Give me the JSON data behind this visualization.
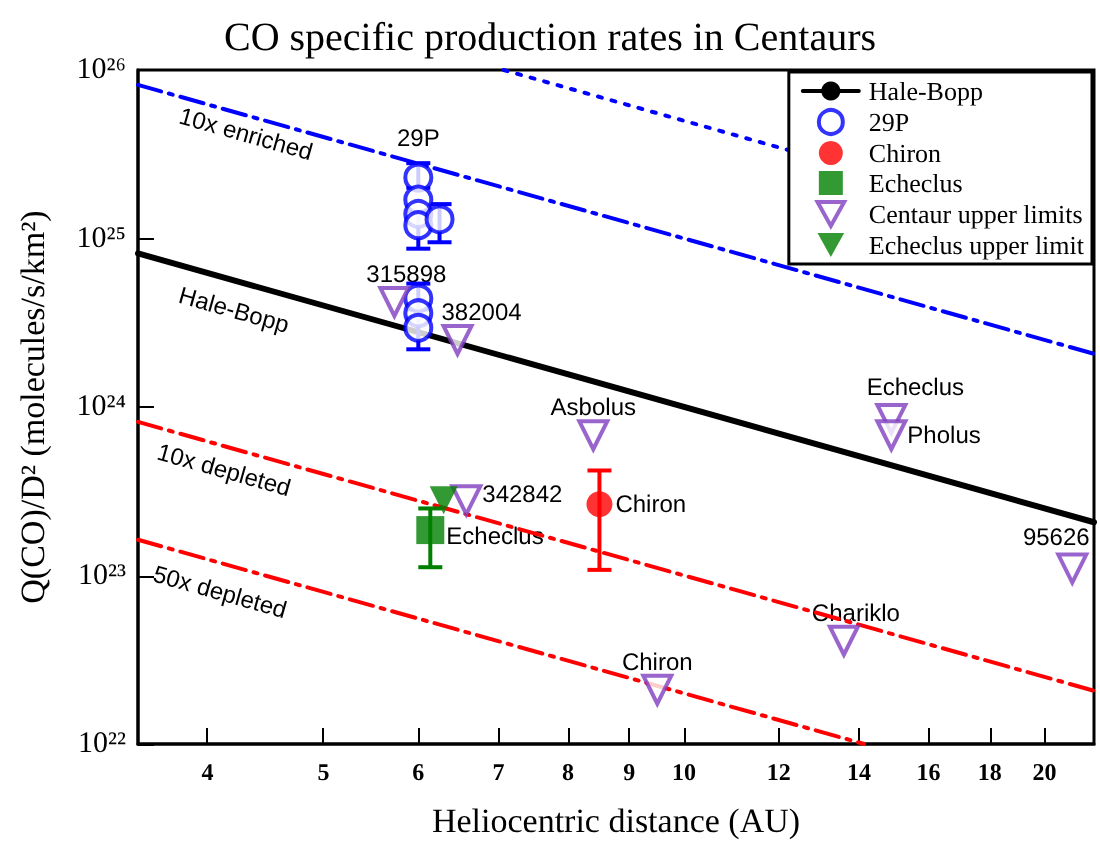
{
  "chart_data": {
    "type": "scatter",
    "title": "CO specific production rates in Centaurs",
    "xlabel": "Heliocentric distance (AU)",
    "ylabel": "Q(CO)/D² (molecules/s/km²)",
    "log": "xy",
    "xlim": [
      3.5,
      22
    ],
    "xticks": [
      4,
      5,
      6,
      7,
      8,
      9,
      10,
      12,
      14,
      16,
      18,
      20
    ],
    "ylim": [
      1e+22,
      1e+26
    ],
    "yticks": [
      {
        "value": 1e+22,
        "label": "10²²"
      },
      {
        "value": 1e+23,
        "label": "10²³"
      },
      {
        "value": 1e+24,
        "label": "10²⁴"
      },
      {
        "value": 1e+25,
        "label": "10²⁵"
      },
      {
        "value": 1e+26,
        "label": "10²⁶"
      }
    ],
    "grid": false,
    "legend": "top right",
    "series": [
      {
        "type": "line",
        "name": "Hale-Bopp",
        "color": "#000000",
        "line_style": "solid",
        "marker": "none",
        "x": [
          3.5,
          22
        ],
        "values": [
          8.16e+24,
          2.07e+23
        ]
      },
      {
        "type": "line",
        "color": "#0000ff",
        "line_style": "dashed",
        "marker": "none",
        "x": [
          3.5,
          22
        ],
        "values": [
          8.16e+25,
          2.07e+24
        ]
      },
      {
        "type": "line",
        "color": "#0000ff",
        "line_style": "dotted",
        "marker": "none",
        "x": [
          7.07,
          12.2
        ],
        "values": [
          1e+26,
          3.36e+25
        ]
      },
      {
        "type": "line",
        "color": "#ff0000",
        "line_style": "dashed",
        "marker": "none",
        "x": [
          3.5,
          22
        ],
        "values": [
          8.16e+23,
          2.07e+22
        ]
      },
      {
        "type": "line",
        "color": "#ff0000",
        "line_style": "dashed",
        "marker": "none",
        "x": [
          3.5,
          14.14
        ],
        "values": [
          1.63e+23,
          1e+22
        ]
      },
      {
        "name": "29P",
        "color": "#0000ff",
        "marker": "circle",
        "x": [
          6,
          6,
          6,
          6,
          6,
          6,
          6,
          6.25
        ],
        "values": [
          2.3e+25,
          1.7e+25,
          1.4e+25,
          1.2e+25,
          4.4e+24,
          3.6e+24,
          2.95e+24,
          1.3e+25
        ],
        "errors": [
          [
            2e+25,
            2.8e+25
          ],
          null,
          null,
          [
            8.7e+24,
            1.45e+25
          ],
          [
            3.8e+24,
            5.4e+24
          ],
          null,
          [
            2.2e+24,
            3.4e+24
          ],
          [
            9.5e+24,
            1.6e+25
          ]
        ]
      },
      {
        "name": "Chiron",
        "color": "#ff0000",
        "marker": "circle",
        "x": [
          8.5
        ],
        "values": [
          2.65e+23
        ],
        "errors": [
          [
            1.08e+23,
            4.2e+23
          ]
        ]
      },
      {
        "name": "Echeclus",
        "color": "#008000",
        "marker": "square",
        "x": [
          6.14
        ],
        "values": [
          1.86e+23
        ],
        "errors": [
          [
            1.12e+23,
            2.5e+23
          ]
        ]
      },
      {
        "name": "Centaur upper limits",
        "color": "#7f3fbf",
        "marker": "triangle",
        "x": [
          5.73,
          6.47,
          8.4,
          6.58,
          9.5,
          14.9,
          14.9,
          13.6,
          21.1
        ],
        "values": [
          4.2e+24,
          2.5e+24,
          6.8e+23,
          2.8e+23,
          2.1e+22,
          8.5e+23,
          6.8e+23,
          4.1e+22,
          1.1e+23
        ]
      },
      {
        "name": "Echeclus upper limit",
        "color": "#008000",
        "marker": "triangle",
        "x": [
          6.3
        ],
        "values": [
          2.8e+23
        ]
      }
    ],
    "annotations": [
      "10x enriched",
      "Hale-Bopp",
      "10x depleted",
      "50x depleted",
      {
        "text": "29P",
        "x": 6,
        "y": 2.3e+25
      },
      {
        "text": "315898",
        "x": 5.73,
        "y": 4.2e+24
      },
      {
        "text": "382004",
        "x": 6.47,
        "y": 2.5e+24
      },
      {
        "text": "Asbolus",
        "x": 8.4,
        "y": 6.8e+23
      },
      {
        "text": "342842",
        "x": 6.58,
        "y": 2.8e+23
      },
      {
        "text": "Chiron",
        "x": 9.5,
        "y": 2.1e+22
      },
      {
        "text": "Echeclus",
        "x": 14.9,
        "y": 8.5e+23
      },
      {
        "text": "Pholus",
        "x": 14.9,
        "y": 6.8e+23
      },
      {
        "text": "Chariklo",
        "x": 13.6,
        "y": 4.1e+22
      },
      {
        "text": "95626",
        "x": 21.1,
        "y": 1.1e+23
      },
      {
        "text": "Chiron",
        "x": 8.5,
        "y": 2.65e+23
      },
      {
        "text": "Echeclus",
        "x": 6.14,
        "y": 1.86e+23
      }
    ]
  }
}
